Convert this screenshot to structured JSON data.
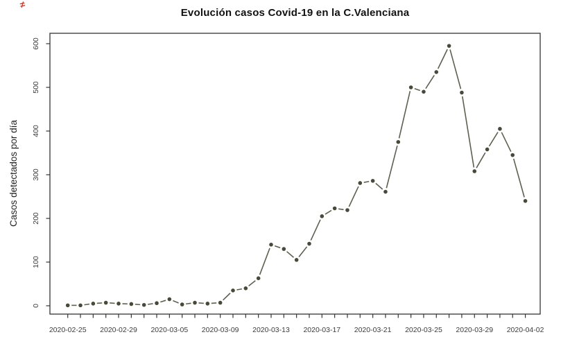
{
  "chart_data": {
    "type": "line",
    "title": "Evolución casos Covid-19 en la C.Valenciana",
    "xlabel": "",
    "ylabel": "Casos detectados por día",
    "ylim": [
      0,
      600
    ],
    "yticks": [
      0,
      100,
      200,
      300,
      400,
      500,
      600
    ],
    "x_tick_labels": [
      "2020-02-25",
      "2020-02-29",
      "2020-03-05",
      "2020-03-09",
      "2020-03-13",
      "2020-03-17",
      "2020-03-21",
      "2020-03-25",
      "2020-03-29",
      "2020-04-02"
    ],
    "x_tick_label_every": 4,
    "n_points": 37,
    "grid": false,
    "legend": "none",
    "marker": "filled-circle",
    "line_style": "solid-with-marker-gaps",
    "series": [
      {
        "name": "Casos detectados por día",
        "values": [
          1,
          1,
          5,
          7,
          5,
          4,
          2,
          6,
          15,
          3,
          7,
          5,
          7,
          35,
          40,
          63,
          140,
          130,
          105,
          142,
          205,
          223,
          219,
          281,
          286,
          261,
          375,
          500,
          490,
          535,
          595,
          488,
          308,
          358,
          405,
          345,
          240
        ]
      }
    ],
    "colors": {
      "marker": "#474a39",
      "line": "#5d604e",
      "axis": "#333333",
      "tick_text": "#3c3c3c",
      "title": "#111111",
      "background": "#ffffff",
      "artifact_red": "#cf3a2e"
    }
  },
  "artifact": {
    "glyph": "≠"
  }
}
